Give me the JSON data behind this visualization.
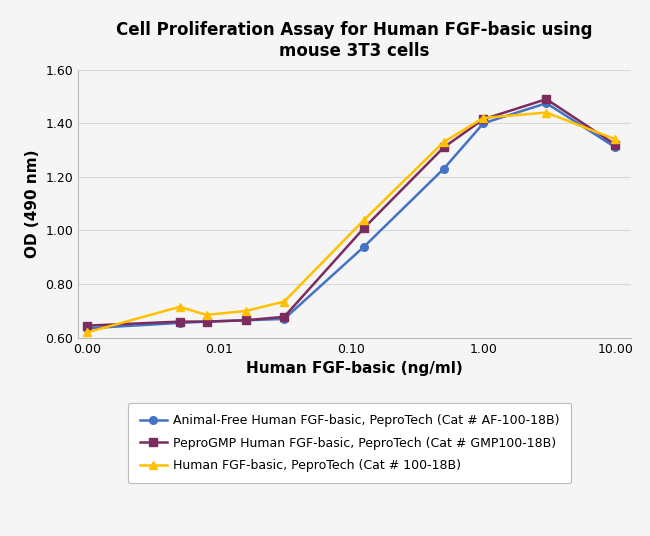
{
  "title": "Cell Proliferation Assay for Human FGF-basic using\nmouse 3T3 cells",
  "xlabel": "Human FGF-basic (ng/ml)",
  "ylabel": "OD (490 nm)",
  "ylim": [
    0.6,
    1.6
  ],
  "yticks": [
    0.6,
    0.8,
    1.0,
    1.2,
    1.4,
    1.6
  ],
  "xtick_positions": [
    0.001,
    0.01,
    0.1,
    1.0,
    10.0
  ],
  "xtick_labels": [
    "0.00",
    "0.01",
    "0.10",
    "1.00",
    "10.00"
  ],
  "series": [
    {
      "label": "Animal-Free Human FGF-basic, PeproTech (Cat # AF-100-18B)",
      "color": "#4472C4",
      "marker": "o",
      "x": [
        0.001,
        0.005,
        0.008,
        0.016,
        0.031,
        0.125,
        0.5,
        1.0,
        3.0,
        10.0
      ],
      "y": [
        0.635,
        0.655,
        0.66,
        0.665,
        0.67,
        0.94,
        1.23,
        1.4,
        1.475,
        1.31
      ]
    },
    {
      "label": "PeproGMP Human FGF-basic, PeproTech (Cat # GMP100-18B)",
      "color": "#7B2C5E",
      "marker": "s",
      "x": [
        0.001,
        0.005,
        0.008,
        0.016,
        0.031,
        0.125,
        0.5,
        1.0,
        3.0,
        10.0
      ],
      "y": [
        0.645,
        0.66,
        0.66,
        0.665,
        0.678,
        1.01,
        1.31,
        1.415,
        1.49,
        1.32
      ]
    },
    {
      "label": "Human FGF-basic, PeproTech (Cat # 100-18B)",
      "color": "#FFC000",
      "marker": "^",
      "x": [
        0.001,
        0.005,
        0.008,
        0.016,
        0.031,
        0.125,
        0.5,
        1.0,
        3.0,
        10.0
      ],
      "y": [
        0.62,
        0.715,
        0.685,
        0.7,
        0.735,
        1.04,
        1.33,
        1.42,
        1.44,
        1.34
      ]
    }
  ],
  "background_color": "#f5f5f5",
  "plot_bg_color": "#f5f5f5",
  "grid_color": "#d8d8d8",
  "title_fontsize": 12,
  "axis_label_fontsize": 11,
  "tick_fontsize": 9,
  "legend_fontsize": 9
}
